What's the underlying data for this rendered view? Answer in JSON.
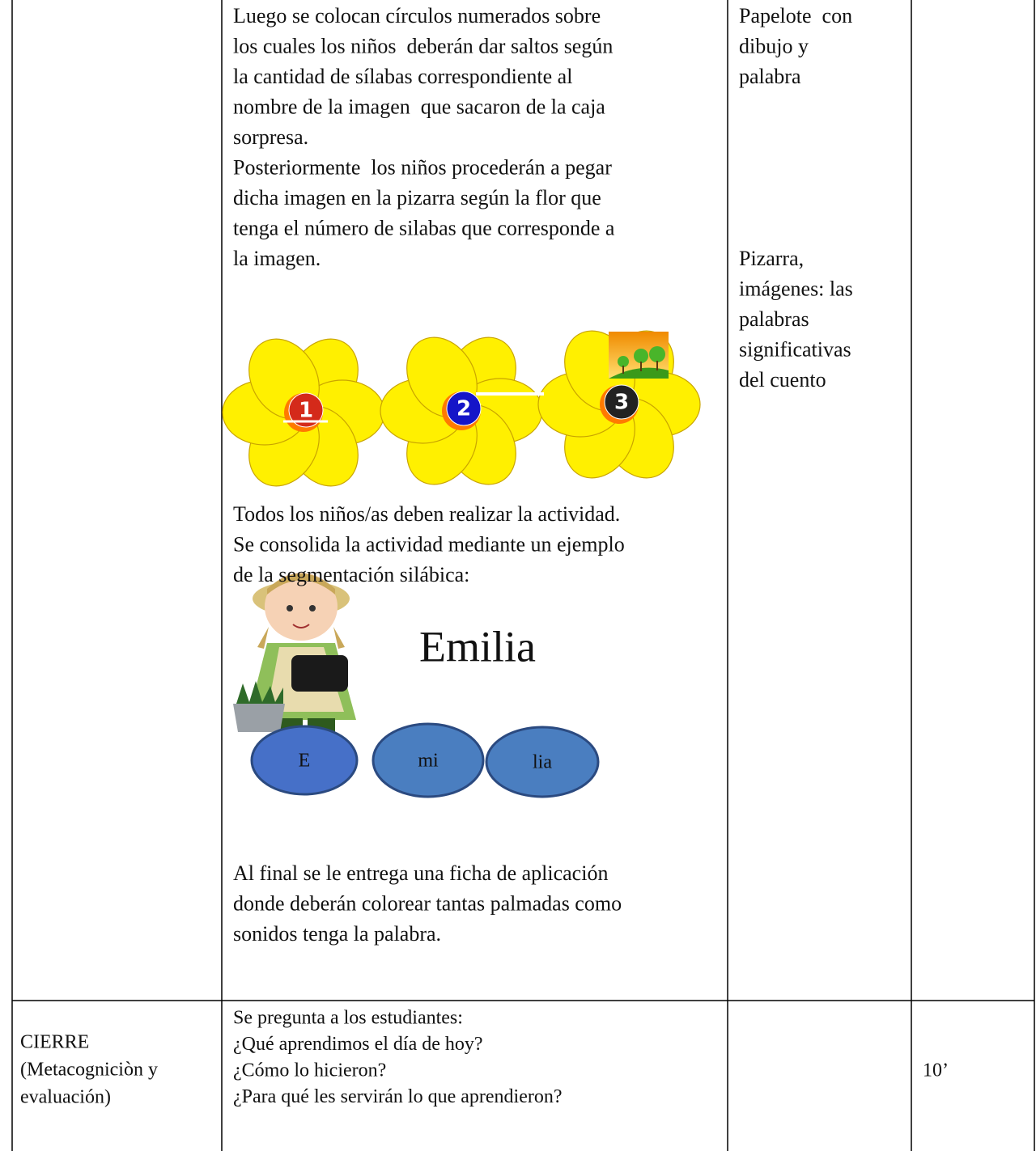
{
  "activity": {
    "lines": [
      "Luego se colocan círculos numerados sobre",
      "los cuales los niños  deberán dar saltos según",
      "la cantidad de sílabas correspondiente al",
      "nombre de la imagen  que sacaron de la caja",
      "sorpresa.",
      "Posteriormente  los niños procederán a pegar",
      "dicha imagen en la pizarra según la flor que",
      "tenga el número de silabas que corresponde a",
      "la imagen."
    ],
    "flowers": [
      "1",
      "2",
      "3"
    ],
    "consolidation_lines": [
      "Todos los niños/as deben realizar la actividad.",
      "Se consolida la actividad mediante un ejemplo",
      "de la segmentación silábica:"
    ],
    "example_word": "Emilia",
    "syllables": [
      "E",
      "mi",
      "lia"
    ],
    "closing_lines": [
      "Al final se le entrega una ficha de aplicación",
      "donde deberán colorear tantas palmadas como",
      "sonidos tenga la palabra."
    ]
  },
  "materials": {
    "first": [
      "Papelote  con",
      "dibujo y",
      "palabra"
    ],
    "second": [
      "Pizarra,",
      "imágenes: las",
      "palabras",
      "significativas",
      "del cuento"
    ]
  },
  "closing": {
    "stage": [
      "CIERRE",
      "(Metacogniciòn y",
      "evaluación)"
    ],
    "questions": [
      "Se pregunta a los estudiantes:",
      "¿Qué aprendimos el día de hoy?",
      "¿Cómo lo hicieron?",
      "¿Para qué les servirán lo que aprendieron?"
    ],
    "time": "10’"
  }
}
